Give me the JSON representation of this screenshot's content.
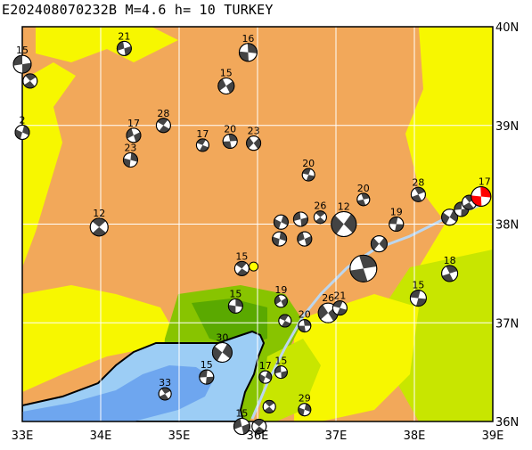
{
  "title": "E202408070232B M=4.6 h= 10 TURKEY",
  "lon_labels": [
    "33E",
    "34E",
    "35E",
    "36E",
    "37E",
    "38E",
    "39E"
  ],
  "lat_labels": [
    "40N",
    "39N",
    "38N",
    "37N",
    "36N"
  ],
  "lon_values": [
    33,
    34,
    35,
    36,
    37,
    38,
    39
  ],
  "lat_values": [
    40,
    39,
    38,
    37,
    36
  ],
  "extent": {
    "lon": [
      33,
      39
    ],
    "lat": [
      36,
      40
    ]
  },
  "colors": {
    "orange": "#f2a85a",
    "yellow": "#f7f700",
    "lime": "#c8e600",
    "green": "#88c400",
    "dkgreen": "#5aa900",
    "sea": "#9ccdf5",
    "sea_deep": "#6ea6ef",
    "grid": "#ffffff",
    "main_event": "#ff0000",
    "epicenter": "#ffff00"
  },
  "main_event": {
    "lon": 38.85,
    "lat": 38.28,
    "depth": "17"
  },
  "epicenter": {
    "lon": 35.95,
    "lat": 37.57
  },
  "mechanisms": [
    {
      "lon": 33.0,
      "lat": 39.62,
      "depth": "15",
      "r": 10
    },
    {
      "lon": 33.1,
      "lat": 39.45,
      "depth": "",
      "r": 8
    },
    {
      "lon": 33.0,
      "lat": 38.93,
      "depth": "2",
      "r": 8
    },
    {
      "lon": 34.3,
      "lat": 39.78,
      "depth": "21",
      "r": 8
    },
    {
      "lon": 33.98,
      "lat": 37.97,
      "depth": "12",
      "r": 10
    },
    {
      "lon": 34.38,
      "lat": 38.65,
      "depth": "23",
      "r": 8
    },
    {
      "lon": 34.42,
      "lat": 38.9,
      "depth": "17",
      "r": 8
    },
    {
      "lon": 34.8,
      "lat": 39.0,
      "depth": "28",
      "r": 8
    },
    {
      "lon": 35.88,
      "lat": 39.74,
      "depth": "16",
      "r": 10
    },
    {
      "lon": 35.6,
      "lat": 39.4,
      "depth": "15",
      "r": 9
    },
    {
      "lon": 35.3,
      "lat": 38.8,
      "depth": "17",
      "r": 7
    },
    {
      "lon": 35.65,
      "lat": 38.84,
      "depth": "20",
      "r": 8
    },
    {
      "lon": 35.95,
      "lat": 38.82,
      "depth": "23",
      "r": 8
    },
    {
      "lon": 36.65,
      "lat": 38.5,
      "depth": "20",
      "r": 7
    },
    {
      "lon": 37.35,
      "lat": 38.25,
      "depth": "20",
      "r": 7
    },
    {
      "lon": 37.1,
      "lat": 38.0,
      "depth": "12",
      "r": 14
    },
    {
      "lon": 37.77,
      "lat": 38.0,
      "depth": "19",
      "r": 8
    },
    {
      "lon": 38.05,
      "lat": 38.3,
      "depth": "28",
      "r": 8
    },
    {
      "lon": 38.45,
      "lat": 38.07,
      "depth": "",
      "r": 9
    },
    {
      "lon": 38.6,
      "lat": 38.15,
      "depth": "",
      "r": 8
    },
    {
      "lon": 38.7,
      "lat": 38.22,
      "depth": "",
      "r": 8
    },
    {
      "lon": 36.3,
      "lat": 38.02,
      "depth": "",
      "r": 8
    },
    {
      "lon": 36.55,
      "lat": 38.05,
      "depth": "",
      "r": 8
    },
    {
      "lon": 36.8,
      "lat": 38.07,
      "depth": "26",
      "r": 7
    },
    {
      "lon": 36.28,
      "lat": 37.85,
      "depth": "",
      "r": 8
    },
    {
      "lon": 36.6,
      "lat": 37.85,
      "depth": "",
      "r": 8
    },
    {
      "lon": 35.8,
      "lat": 37.55,
      "depth": "15",
      "r": 8
    },
    {
      "lon": 35.72,
      "lat": 37.17,
      "depth": "15",
      "r": 8
    },
    {
      "lon": 36.3,
      "lat": 37.22,
      "depth": "19",
      "r": 7
    },
    {
      "lon": 36.35,
      "lat": 37.02,
      "depth": "",
      "r": 7
    },
    {
      "lon": 36.6,
      "lat": 36.97,
      "depth": "20",
      "r": 7
    },
    {
      "lon": 36.9,
      "lat": 37.1,
      "depth": "26",
      "r": 11
    },
    {
      "lon": 37.05,
      "lat": 37.15,
      "depth": "21",
      "r": 8
    },
    {
      "lon": 37.35,
      "lat": 37.55,
      "depth": "",
      "r": 15
    },
    {
      "lon": 37.55,
      "lat": 37.8,
      "depth": "",
      "r": 9
    },
    {
      "lon": 38.05,
      "lat": 37.25,
      "depth": "15",
      "r": 9
    },
    {
      "lon": 38.45,
      "lat": 37.5,
      "depth": "18",
      "r": 9
    },
    {
      "lon": 35.55,
      "lat": 36.7,
      "depth": "30",
      "r": 11
    },
    {
      "lon": 35.35,
      "lat": 36.45,
      "depth": "15",
      "r": 8
    },
    {
      "lon": 34.82,
      "lat": 36.28,
      "depth": "33",
      "r": 7
    },
    {
      "lon": 36.1,
      "lat": 36.45,
      "depth": "17",
      "r": 7
    },
    {
      "lon": 36.3,
      "lat": 36.5,
      "depth": "15",
      "r": 7
    },
    {
      "lon": 36.15,
      "lat": 36.15,
      "depth": "",
      "r": 7
    },
    {
      "lon": 36.6,
      "lat": 36.12,
      "depth": "29",
      "r": 7
    },
    {
      "lon": 35.8,
      "lat": 35.95,
      "depth": "15",
      "r": 9
    },
    {
      "lon": 36.02,
      "lat": 35.95,
      "depth": "",
      "r": 8
    }
  ]
}
